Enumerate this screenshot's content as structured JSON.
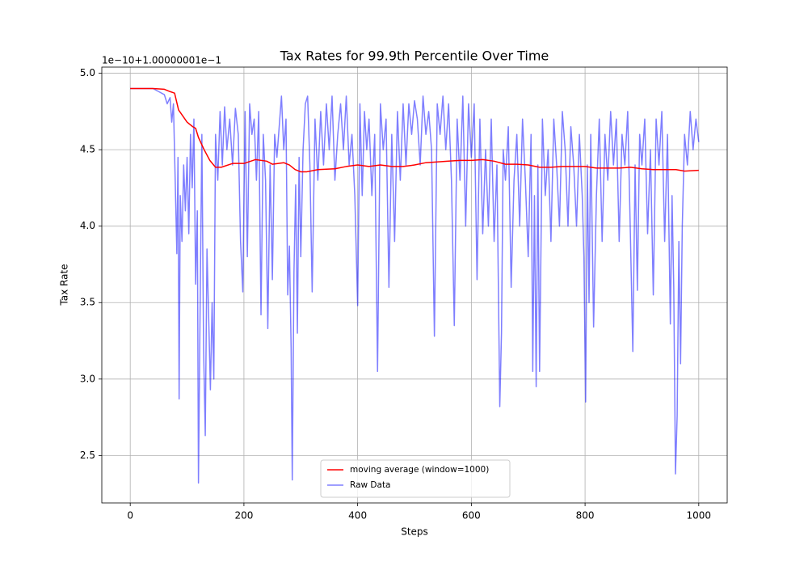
{
  "chart_data": {
    "type": "line",
    "title": "Tax Rates for 99.9th Percentile Over Time",
    "x_label": "Steps",
    "y_label": "Tax Rate",
    "y_offset_label": "1e−10+1.00000001e−1",
    "xlim": [
      -50,
      1050
    ],
    "xticks": [
      0,
      200,
      400,
      600,
      800,
      1000
    ],
    "ylim": [
      2.19,
      5.04
    ],
    "yticks": [
      2.5,
      {
        "value": 3,
        "label": "3.0"
      },
      3.5,
      {
        "value": 4,
        "label": "4.0"
      },
      4.5,
      {
        "value": 5,
        "label": "5.0"
      }
    ],
    "grid": true,
    "legend": "lower center",
    "series": [
      {
        "name": "moving average (window=1000)",
        "color": "#ff0000",
        "opacity": 1,
        "x": [
          0,
          40,
          60,
          70,
          78,
          85,
          100,
          110,
          115,
          120,
          130,
          140,
          150,
          160,
          180,
          200,
          220,
          240,
          250,
          270,
          280,
          290,
          300,
          310,
          330,
          360,
          380,
          400,
          420,
          440,
          460,
          480,
          500,
          520,
          540,
          560,
          580,
          600,
          620,
          640,
          660,
          680,
          700,
          720,
          740,
          760,
          780,
          800,
          820,
          840,
          860,
          880,
          900,
          920,
          940,
          960,
          975,
          1000
        ],
        "values": [
          4.9,
          4.9,
          4.895,
          4.88,
          4.87,
          4.76,
          4.68,
          4.65,
          4.64,
          4.58,
          4.5,
          4.43,
          4.385,
          4.385,
          4.41,
          4.41,
          4.435,
          4.425,
          4.405,
          4.415,
          4.4,
          4.37,
          4.355,
          4.355,
          4.37,
          4.375,
          4.39,
          4.4,
          4.39,
          4.4,
          4.39,
          4.39,
          4.4,
          4.415,
          4.42,
          4.425,
          4.43,
          4.43,
          4.435,
          4.425,
          4.405,
          4.405,
          4.4,
          4.385,
          4.385,
          4.39,
          4.39,
          4.39,
          4.38,
          4.38,
          4.38,
          4.385,
          4.375,
          4.37,
          4.37,
          4.37,
          4.36,
          4.365
        ]
      },
      {
        "name": "Raw Data",
        "color": "#0000ff",
        "opacity": 0.5,
        "x": [
          0,
          20,
          40,
          50,
          60,
          65,
          70,
          73,
          76,
          80,
          82,
          84,
          86,
          88,
          91,
          94,
          97,
          100,
          103,
          106,
          109,
          112,
          115,
          118,
          120,
          123,
          126,
          129,
          132,
          135,
          138,
          141,
          144,
          147,
          150,
          154,
          158,
          162,
          166,
          170,
          175,
          180,
          185,
          190,
          194,
          198,
          202,
          206,
          210,
          214,
          218,
          222,
          226,
          230,
          234,
          238,
          242,
          246,
          250,
          254,
          258,
          262,
          266,
          270,
          274,
          277,
          280,
          283,
          285,
          288,
          291,
          294,
          297,
          300,
          304,
          308,
          312,
          316,
          320,
          325,
          330,
          335,
          340,
          345,
          350,
          355,
          360,
          365,
          370,
          375,
          380,
          385,
          390,
          395,
          400,
          404,
          408,
          412,
          416,
          420,
          425,
          430,
          435,
          440,
          445,
          450,
          455,
          460,
          465,
          470,
          475,
          480,
          485,
          490,
          495,
          500,
          505,
          510,
          515,
          520,
          525,
          530,
          535,
          540,
          545,
          550,
          555,
          560,
          565,
          570,
          575,
          580,
          585,
          590,
          595,
          600,
          605,
          610,
          615,
          620,
          625,
          630,
          635,
          640,
          645,
          650,
          653,
          656,
          660,
          665,
          670,
          675,
          680,
          685,
          690,
          695,
          700,
          705,
          708,
          711,
          714,
          717,
          720,
          725,
          730,
          735,
          740,
          745,
          750,
          755,
          760,
          765,
          770,
          775,
          780,
          785,
          790,
          795,
          798,
          801,
          804,
          807,
          810,
          815,
          820,
          825,
          830,
          835,
          840,
          845,
          850,
          855,
          860,
          865,
          870,
          875,
          880,
          884,
          888,
          892,
          896,
          900,
          905,
          910,
          915,
          920,
          925,
          930,
          935,
          940,
          945,
          950,
          953,
          956,
          959,
          962,
          965,
          968,
          971,
          975,
          980,
          985,
          990,
          995,
          1000
        ],
        "values": [
          4.9,
          4.9,
          4.9,
          4.88,
          4.86,
          4.8,
          4.84,
          4.68,
          4.8,
          4.15,
          3.82,
          4.45,
          2.87,
          4.2,
          3.9,
          4.4,
          4.1,
          4.45,
          3.95,
          4.6,
          4.25,
          4.7,
          3.62,
          4.1,
          2.32,
          3.5,
          4.6,
          3.2,
          2.63,
          3.85,
          3.4,
          2.93,
          3.5,
          3.0,
          4.6,
          4.3,
          4.75,
          4.4,
          4.78,
          4.5,
          4.7,
          4.4,
          4.77,
          4.6,
          3.9,
          3.57,
          4.75,
          3.8,
          4.8,
          4.6,
          4.7,
          4.3,
          4.75,
          3.42,
          4.6,
          4.3,
          3.33,
          4.4,
          3.65,
          4.6,
          4.45,
          4.65,
          4.85,
          4.5,
          4.7,
          3.55,
          3.87,
          3.2,
          2.34,
          3.7,
          4.27,
          3.3,
          4.45,
          3.8,
          4.5,
          4.8,
          4.85,
          4.4,
          3.57,
          4.7,
          4.3,
          4.75,
          4.4,
          4.8,
          4.5,
          4.85,
          4.3,
          4.6,
          4.8,
          4.5,
          4.85,
          4.4,
          4.6,
          4.2,
          3.48,
          4.8,
          4.2,
          4.75,
          4.5,
          4.7,
          4.2,
          4.6,
          3.05,
          4.8,
          4.5,
          4.7,
          3.6,
          4.6,
          3.9,
          4.75,
          4.3,
          4.8,
          4.4,
          4.8,
          4.6,
          4.82,
          4.7,
          4.4,
          4.85,
          4.6,
          4.75,
          4.5,
          3.28,
          4.8,
          4.6,
          4.85,
          4.5,
          4.8,
          4.3,
          3.35,
          4.7,
          4.3,
          4.85,
          4.0,
          4.8,
          4.45,
          4.8,
          3.65,
          4.7,
          3.95,
          4.5,
          4.0,
          4.7,
          3.9,
          4.4,
          2.82,
          3.3,
          4.5,
          4.3,
          4.65,
          3.6,
          4.3,
          4.6,
          4.0,
          4.7,
          4.3,
          3.8,
          4.6,
          3.05,
          4.2,
          2.95,
          4.4,
          3.05,
          4.7,
          4.2,
          4.5,
          3.9,
          4.7,
          4.4,
          4.0,
          4.75,
          4.5,
          4.0,
          4.65,
          4.4,
          4.0,
          4.6,
          4.2,
          3.8,
          2.85,
          4.4,
          3.5,
          4.6,
          3.34,
          4.2,
          4.7,
          3.9,
          4.6,
          4.3,
          4.75,
          4.4,
          4.7,
          3.9,
          4.6,
          4.4,
          4.75,
          3.9,
          3.18,
          4.4,
          3.58,
          4.6,
          4.4,
          4.7,
          3.95,
          4.5,
          3.55,
          4.7,
          4.4,
          4.75,
          3.9,
          4.6,
          3.36,
          4.2,
          3.6,
          2.38,
          2.76,
          3.9,
          3.1,
          4.0,
          4.6,
          4.4,
          4.75,
          4.5,
          4.7,
          4.55
        ]
      }
    ]
  }
}
